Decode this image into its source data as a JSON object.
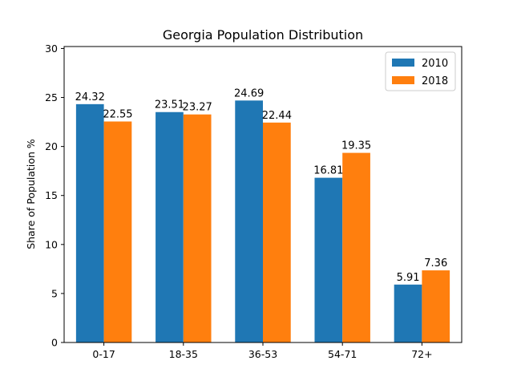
{
  "chart_data": {
    "type": "bar",
    "title": "Georgia Population Distribution",
    "xlabel": "",
    "ylabel": "Share of Population %",
    "categories": [
      "0-17",
      "18-35",
      "36-53",
      "54-71",
      "72+"
    ],
    "series": [
      {
        "name": "2010",
        "color": "#1f77b4",
        "values": [
          24.32,
          23.51,
          24.69,
          16.81,
          5.91
        ]
      },
      {
        "name": "2018",
        "color": "#ff7f0e",
        "values": [
          22.55,
          23.27,
          22.44,
          19.35,
          7.36
        ]
      }
    ],
    "ylim": [
      0,
      30.2
    ],
    "yticks": [
      0,
      5,
      10,
      15,
      20,
      25,
      30
    ],
    "grid": false,
    "legend_position": "top-right",
    "data_labels": true
  }
}
